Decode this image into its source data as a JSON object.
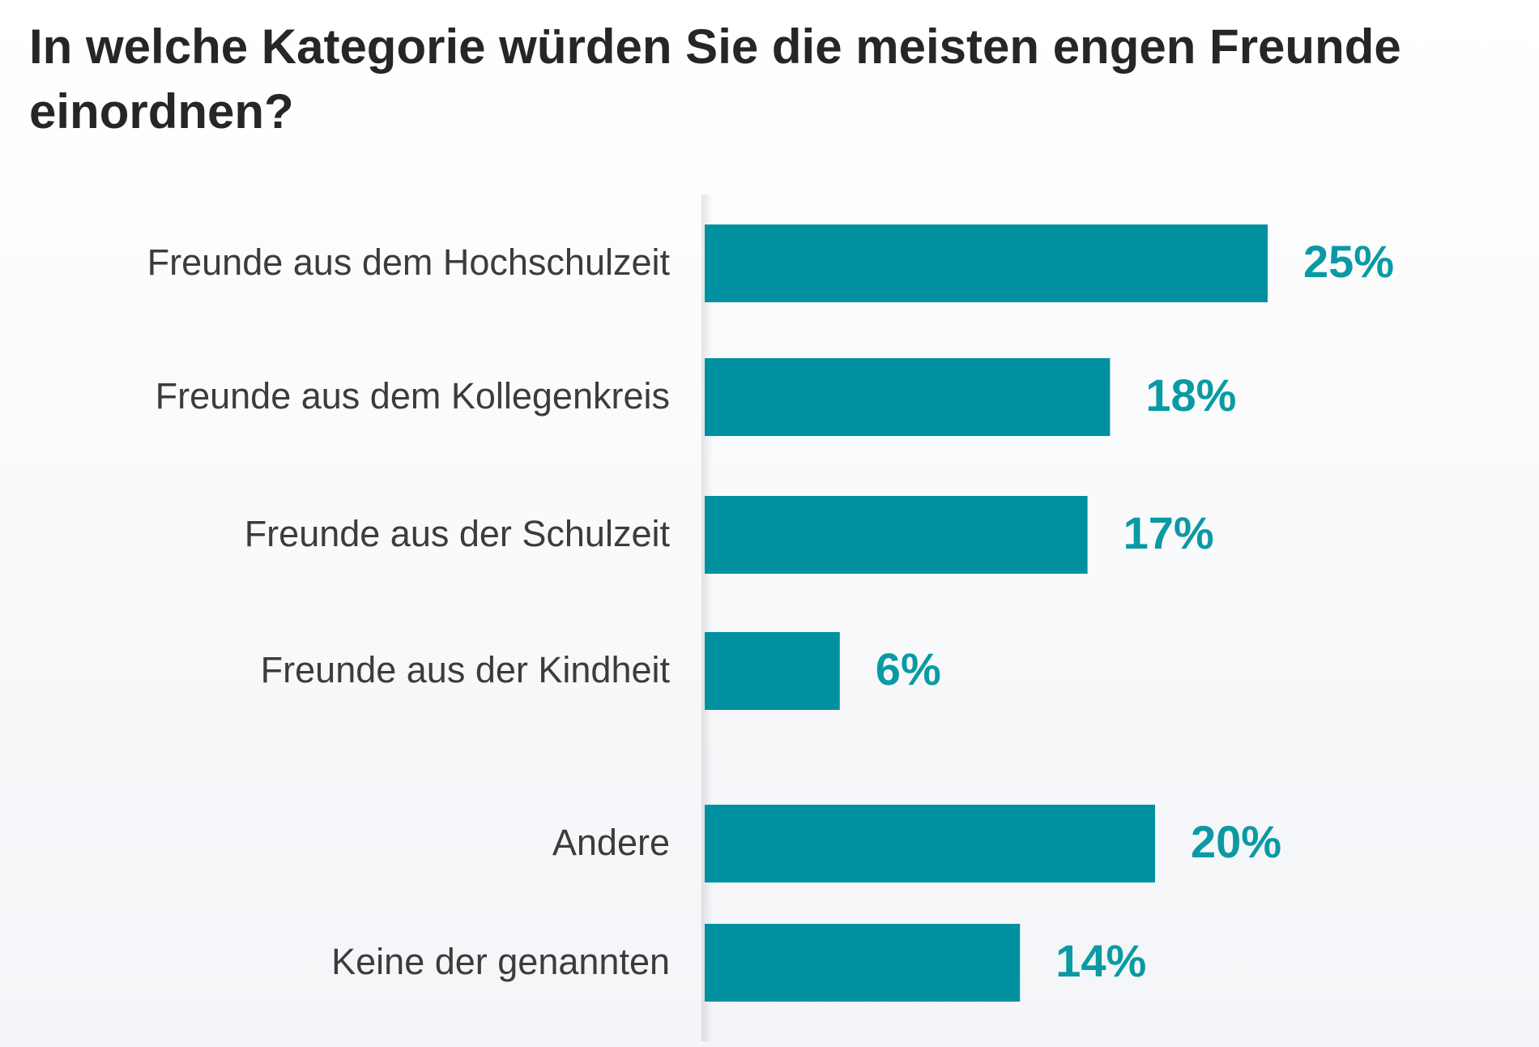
{
  "title": "In welche Kategorie würden Sie die meisten engen Freunde einordnen?",
  "colors": {
    "bar": "#0090a0",
    "value_text": "#0a9aa4",
    "label_text": "#3c3c3c",
    "title_text": "#262626"
  },
  "chart_data": {
    "type": "bar",
    "orientation": "horizontal",
    "categories": [
      "Freunde aus dem Hochschulzeit",
      "Freunde aus dem Kollegenkreis",
      "Freunde aus der Schulzeit",
      "Freunde aus der Kindheit",
      "Andere",
      "Keine der genannten"
    ],
    "values": [
      25,
      18,
      17,
      6,
      20,
      14
    ],
    "value_labels": [
      "25%",
      "18%",
      "17%",
      "6%",
      "20%",
      "14%"
    ],
    "unit": "%",
    "xlim": [
      0,
      25
    ],
    "grid": false,
    "legend": "none"
  }
}
